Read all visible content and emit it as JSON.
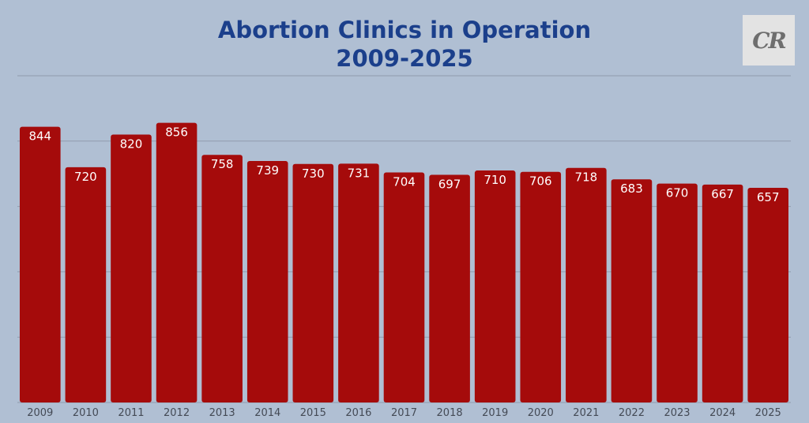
{
  "logo": {
    "text": "CR"
  },
  "chart_data": {
    "type": "bar",
    "title_lines": [
      "Abortion Clinics in Operation",
      "2009-2025"
    ],
    "xlabel": "",
    "ylabel": "",
    "categories": [
      "2009",
      "2010",
      "2011",
      "2012",
      "2013",
      "2014",
      "2015",
      "2016",
      "2017",
      "2018",
      "2019",
      "2020",
      "2021",
      "2022",
      "2023",
      "2024",
      "2025"
    ],
    "values": [
      844,
      720,
      820,
      856,
      758,
      739,
      730,
      731,
      704,
      697,
      710,
      706,
      718,
      683,
      670,
      667,
      657
    ],
    "ylim": [
      0,
      1000
    ],
    "grid": true,
    "legend": "none",
    "colors": {
      "bar": "#a50b0b",
      "grid": "#8f9bae",
      "background": "#b0bfd3",
      "title": "#1b3f8b"
    }
  }
}
